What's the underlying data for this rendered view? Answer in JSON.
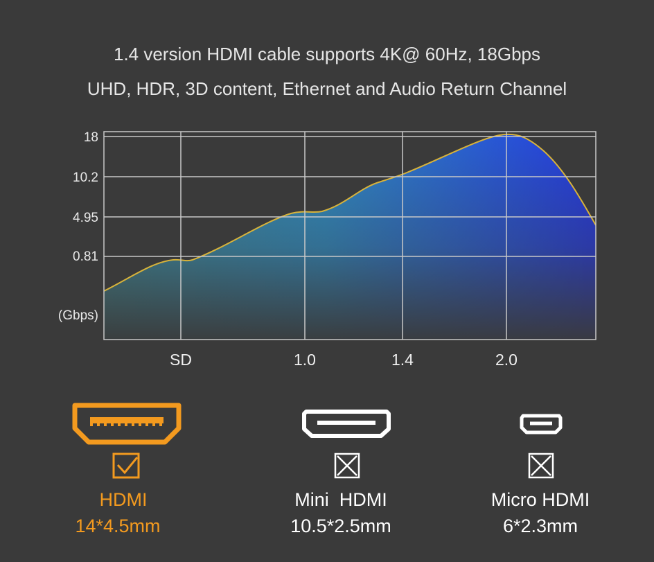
{
  "header": {
    "line1": "1.4 version HDMI cable supports 4K@ 60Hz, 18Gbps",
    "line2": "UHD, HDR, 3D content, Ethernet and Audio Return Channel"
  },
  "chart": {
    "y_labels": [
      18,
      10.2,
      4.95,
      0.81
    ],
    "unit": "(Gbps)",
    "x_labels": [
      "SD",
      "1.0",
      "1.4",
      "2.0"
    ]
  },
  "products": [
    {
      "name": "HDMI",
      "size": "14*4.5mm"
    },
    {
      "name": "Mini  HDMI",
      "size": "10.5*2.5mm"
    },
    {
      "name": "Micro HDMI",
      "size": "6*2.3mm"
    }
  ]
}
